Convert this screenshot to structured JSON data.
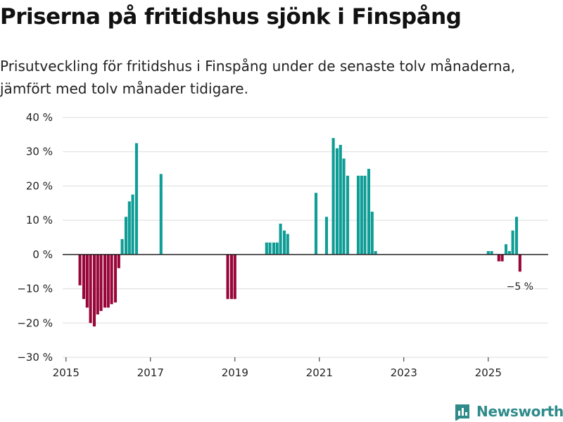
{
  "title": "Priserna på fritidshus sjönk i Finspång",
  "subtitle": "Prisutveckling för fritidshus i Finspång under de senaste tolv månaderna, jämfört med tolv månader tidigare.",
  "brand": {
    "name": "Newsworthy",
    "color": "#2e8b8a"
  },
  "chart_data": {
    "type": "bar",
    "title": "Priserna på fritidshus sjönk i Finspång",
    "xlabel": "",
    "ylabel": "",
    "ylim": [
      -30,
      40
    ],
    "yticks": [
      -30,
      -20,
      -10,
      0,
      10,
      20,
      30,
      40
    ],
    "ytick_labels": [
      "−30 %",
      "−20 %",
      "−10 %",
      "0 %",
      "10 %",
      "20 %",
      "30 %",
      "40 %"
    ],
    "xlim": [
      2014.92,
      2026.42
    ],
    "xticks": [
      2015,
      2017,
      2019,
      2021,
      2023,
      2025
    ],
    "xtick_labels": [
      "2015",
      "2017",
      "2019",
      "2021",
      "2023",
      "2025"
    ],
    "positive_color": "#0f9d96",
    "negative_color": "#98063a",
    "grid": true,
    "annotation": {
      "x": 2025.75,
      "value": -5,
      "label": "−5 %"
    },
    "series": [
      {
        "name": "Prisutveckling",
        "points": [
          {
            "x": 2015.33,
            "y": -9
          },
          {
            "x": 2015.42,
            "y": -13
          },
          {
            "x": 2015.5,
            "y": -15.5
          },
          {
            "x": 2015.58,
            "y": -20
          },
          {
            "x": 2015.67,
            "y": -21
          },
          {
            "x": 2015.75,
            "y": -17.5
          },
          {
            "x": 2015.83,
            "y": -16.5
          },
          {
            "x": 2015.92,
            "y": -15.5
          },
          {
            "x": 2016.0,
            "y": -15.5
          },
          {
            "x": 2016.08,
            "y": -14.5
          },
          {
            "x": 2016.17,
            "y": -14
          },
          {
            "x": 2016.25,
            "y": -4
          },
          {
            "x": 2016.33,
            "y": 4.5
          },
          {
            "x": 2016.42,
            "y": 11
          },
          {
            "x": 2016.5,
            "y": 15.5
          },
          {
            "x": 2016.58,
            "y": 17.5
          },
          {
            "x": 2016.67,
            "y": 32.5
          },
          {
            "x": 2017.25,
            "y": 23.5
          },
          {
            "x": 2018.83,
            "y": -13
          },
          {
            "x": 2018.92,
            "y": -13
          },
          {
            "x": 2019.0,
            "y": -13
          },
          {
            "x": 2019.75,
            "y": 3.5
          },
          {
            "x": 2019.83,
            "y": 3.5
          },
          {
            "x": 2019.92,
            "y": 3.5
          },
          {
            "x": 2020.0,
            "y": 3.5
          },
          {
            "x": 2020.08,
            "y": 9
          },
          {
            "x": 2020.17,
            "y": 7
          },
          {
            "x": 2020.25,
            "y": 6
          },
          {
            "x": 2020.92,
            "y": 18
          },
          {
            "x": 2021.17,
            "y": 11
          },
          {
            "x": 2021.33,
            "y": 34
          },
          {
            "x": 2021.42,
            "y": 31
          },
          {
            "x": 2021.5,
            "y": 32
          },
          {
            "x": 2021.58,
            "y": 28
          },
          {
            "x": 2021.67,
            "y": 23
          },
          {
            "x": 2021.92,
            "y": 23
          },
          {
            "x": 2022.0,
            "y": 23
          },
          {
            "x": 2022.08,
            "y": 23
          },
          {
            "x": 2022.17,
            "y": 25
          },
          {
            "x": 2022.25,
            "y": 12.5
          },
          {
            "x": 2022.33,
            "y": 1
          },
          {
            "x": 2025.0,
            "y": 1
          },
          {
            "x": 2025.08,
            "y": 1
          },
          {
            "x": 2025.25,
            "y": -2
          },
          {
            "x": 2025.33,
            "y": -2
          },
          {
            "x": 2025.42,
            "y": 3
          },
          {
            "x": 2025.5,
            "y": 1
          },
          {
            "x": 2025.58,
            "y": 7
          },
          {
            "x": 2025.67,
            "y": 11
          },
          {
            "x": 2025.75,
            "y": -5
          }
        ]
      }
    ]
  }
}
